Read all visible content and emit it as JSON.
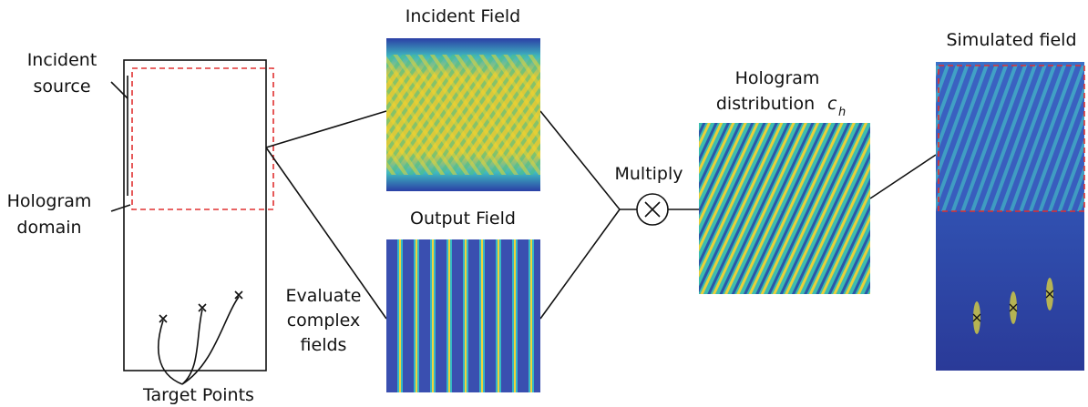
{
  "left_panel": {
    "incident_source": [
      "Incident",
      "source"
    ],
    "hologram_domain": [
      "Hologram",
      "domain"
    ],
    "target_points": "Target Points"
  },
  "incident_field": {
    "title": "Incident Field"
  },
  "output_field": {
    "title": "Output Field"
  },
  "evaluate": [
    "Evaluate",
    "complex",
    "fields"
  ],
  "multiply": "Multiply",
  "hologram_distribution": {
    "lines": [
      "Hologram",
      "distribution"
    ],
    "symbol": "c",
    "subscript": "h"
  },
  "simulated_field": {
    "title": "Simulated field"
  }
}
